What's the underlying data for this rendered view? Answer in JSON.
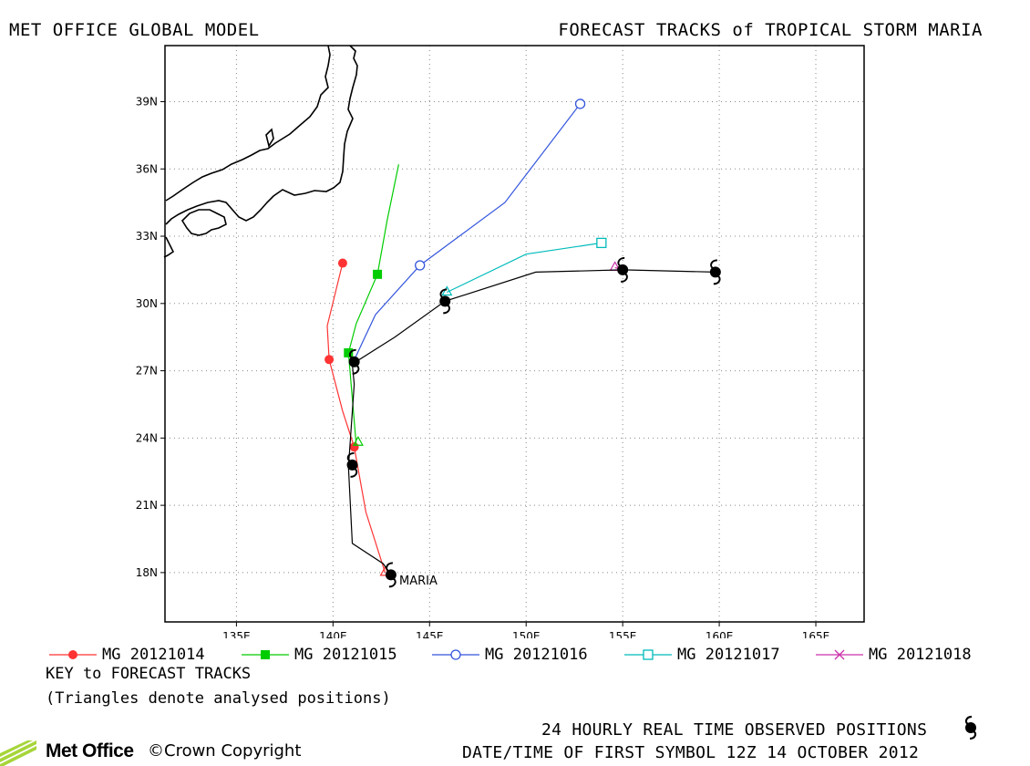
{
  "header": {
    "left_title": "MET OFFICE GLOBAL MODEL",
    "right_title": "FORECAST TRACKS of TROPICAL STORM MARIA"
  },
  "map_meta": {
    "lon_range": [
      131.3,
      167.5
    ],
    "lat_range": [
      15.8,
      41.5
    ],
    "grid": true,
    "storm_label": "MARIA",
    "lon_ticks": [
      {
        "value": 135,
        "label": "135E"
      },
      {
        "value": 140,
        "label": "140E"
      },
      {
        "value": 145,
        "label": "145E"
      },
      {
        "value": 150,
        "label": "150E"
      },
      {
        "value": 155,
        "label": "155E"
      },
      {
        "value": 160,
        "label": "160E"
      },
      {
        "value": 165,
        "label": "165E"
      }
    ],
    "lat_ticks": [
      {
        "value": 18,
        "label": "18N"
      },
      {
        "value": 21,
        "label": "21N"
      },
      {
        "value": 24,
        "label": "24N"
      },
      {
        "value": 27,
        "label": "27N"
      },
      {
        "value": 30,
        "label": "30N"
      },
      {
        "value": 33,
        "label": "33N"
      },
      {
        "value": 36,
        "label": "36N"
      },
      {
        "value": 39,
        "label": "39N"
      }
    ]
  },
  "chart_data": {
    "type": "line",
    "observed_track": {
      "points": [
        [
          143.0,
          17.9
        ],
        [
          142.6,
          18.4
        ],
        [
          141.0,
          19.3
        ],
        [
          140.8,
          22.7
        ],
        [
          141.1,
          26.4
        ],
        [
          141.0,
          27.3
        ],
        [
          143.2,
          28.5
        ],
        [
          145.8,
          30.1
        ],
        [
          150.5,
          31.4
        ],
        [
          155.0,
          31.5
        ],
        [
          159.8,
          31.4
        ]
      ],
      "symbols": [
        [
          143.0,
          17.9
        ],
        [
          141.0,
          22.8
        ],
        [
          141.1,
          27.4
        ],
        [
          145.8,
          30.1
        ],
        [
          155.0,
          31.5
        ],
        [
          159.8,
          31.4
        ]
      ]
    },
    "series": [
      {
        "name": "MG 20121014",
        "color": "#ff3333",
        "marker": "circle-filled",
        "points": [
          [
            142.7,
            18.0
          ],
          [
            141.7,
            20.7
          ],
          [
            141.1,
            23.6
          ],
          [
            140.5,
            25.2
          ],
          [
            139.8,
            27.5
          ],
          [
            139.7,
            29.0
          ],
          [
            140.5,
            31.8
          ]
        ],
        "markers": [
          [
            141.1,
            23.6
          ],
          [
            139.8,
            27.5
          ],
          [
            140.5,
            31.8
          ]
        ]
      },
      {
        "name": "MG 20121015",
        "color": "#00cc00",
        "marker": "square-filled",
        "points": [
          [
            141.2,
            23.7
          ],
          [
            140.8,
            27.8
          ],
          [
            141.2,
            29.1
          ],
          [
            142.3,
            31.3
          ],
          [
            142.8,
            33.7
          ],
          [
            143.4,
            36.2
          ]
        ],
        "markers": [
          [
            140.8,
            27.8
          ],
          [
            142.3,
            31.3
          ]
        ]
      },
      {
        "name": "MG 20121016",
        "color": "#3355dd",
        "marker": "circle-open",
        "points": [
          [
            141.0,
            27.3
          ],
          [
            142.2,
            29.5
          ],
          [
            144.5,
            31.7
          ],
          [
            148.9,
            34.5
          ],
          [
            152.8,
            38.9
          ]
        ],
        "markers": [
          [
            144.5,
            31.7
          ],
          [
            152.8,
            38.9
          ]
        ]
      },
      {
        "name": "MG 20121017",
        "color": "#00bbbb",
        "marker": "square-open",
        "points": [
          [
            145.9,
            30.5
          ],
          [
            150.0,
            32.2
          ],
          [
            153.9,
            32.7
          ]
        ],
        "markers": [
          [
            153.9,
            32.7
          ]
        ]
      },
      {
        "name": "MG 20121018",
        "color": "#cc33aa",
        "marker": "x",
        "points": [
          [
            154.6,
            31.6
          ],
          [
            155.0,
            31.5
          ]
        ],
        "markers": []
      }
    ],
    "analysed_positions": [
      [
        142.7,
        18.0
      ],
      [
        141.3,
        23.8
      ],
      [
        145.9,
        30.5
      ],
      [
        154.6,
        31.6
      ]
    ]
  },
  "key": {
    "title": "KEY to FORECAST TRACKS",
    "note": "(Triangles denote analysed positions)"
  },
  "footer": {
    "observed_line": "24 HOURLY REAL TIME OBSERVED POSITIONS",
    "date_line": "DATE/TIME OF FIRST SYMBOL 12Z 14 OCTOBER 2012",
    "logo_text": "Met Office",
    "copyright": "©Crown Copyright"
  },
  "colors": {
    "observed": "#000000",
    "grid": "#888888",
    "logo_green": "#a6d53a"
  }
}
